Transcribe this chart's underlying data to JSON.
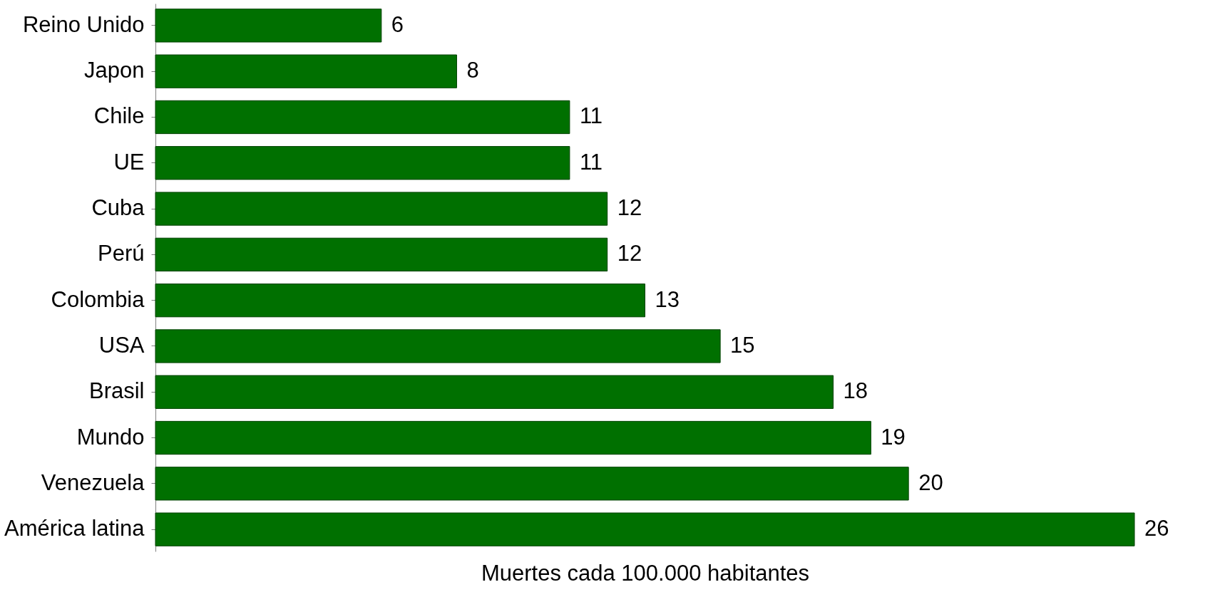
{
  "chart_data": {
    "type": "bar",
    "orientation": "horizontal",
    "xlabel": "Muertes cada 100.000 habitantes",
    "categories": [
      "Reino Unido",
      "Japon",
      "Chile",
      "UE",
      "Cuba",
      "Perú",
      "Colombia",
      "USA",
      "Brasil",
      "Mundo",
      "Venezuela",
      "América latina"
    ],
    "values": [
      6,
      8,
      11,
      11,
      12,
      12,
      13,
      15,
      18,
      19,
      20,
      26
    ],
    "color": "#007000",
    "data_labels": true
  }
}
